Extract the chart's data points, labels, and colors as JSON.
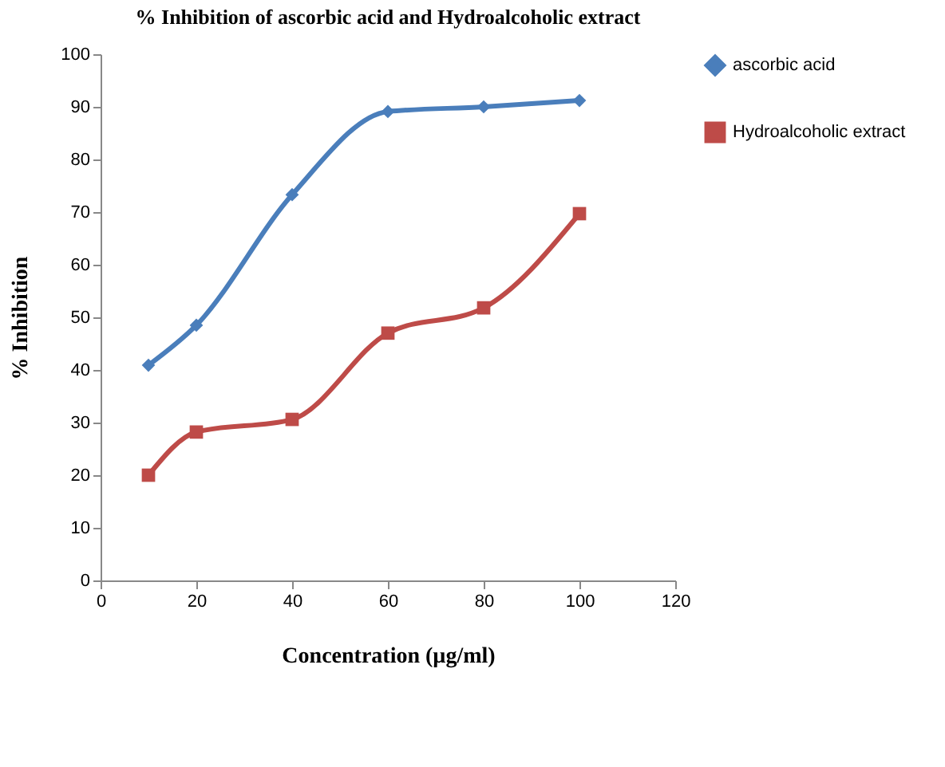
{
  "chart_data": {
    "type": "line",
    "title": "% Inhibition of ascorbic acid and Hydroalcoholic extract",
    "xlabel": "Concentration (µg/ml)",
    "ylabel": "% Inhibition",
    "x": [
      10,
      20,
      40,
      60,
      80,
      100
    ],
    "series": [
      {
        "name": "ascorbic acid",
        "color": "#4a7ebb",
        "marker": "diamond",
        "values": [
          40.9,
          48.5,
          73.3,
          89.1,
          90,
          91.2
        ]
      },
      {
        "name": "Hydroalcoholic extract",
        "color": "#be4b48",
        "marker": "square",
        "values": [
          20,
          28.2,
          30.6,
          47,
          51.8,
          69.7
        ]
      }
    ],
    "xlim": [
      0,
      120
    ],
    "xticks": [
      0,
      20,
      40,
      60,
      80,
      100,
      120
    ],
    "ylim": [
      0,
      100
    ],
    "yticks": [
      0,
      10,
      20,
      30,
      40,
      50,
      60,
      70,
      80,
      90,
      100
    ],
    "grid": false,
    "legend": "right",
    "line_style": "solid"
  }
}
